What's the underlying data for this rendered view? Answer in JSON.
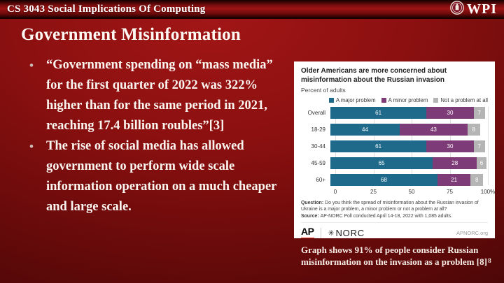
{
  "header": {
    "course": "CS 3043 Social Implications Of Computing",
    "logo_text": "WPI"
  },
  "slide": {
    "title": "Government Misinformation",
    "bullets": [
      "“Government spending on “mass media” for the first quarter of 2022 was 322% higher than for the same period in 2021, reaching 17.4 billion roubles”[3]",
      "The rise of social media has allowed government to perform wide scale information operation on a much cheaper and large scale."
    ],
    "caption": "Graph shows 91% of people consider Russian misinformation on the invasion as a problem [8]",
    "page_number": "8"
  },
  "chart": {
    "title": "Older Americans are more concerned about misinformation about the Russian invasion",
    "subtitle": "Percent of adults",
    "question_label": "Question:",
    "question": "Do you think the spread of misinformation about the Russian invasion of Ukraine is a major problem, a minor problem or not a problem at all?",
    "source_label": "Source:",
    "source": "AP-NORC Poll conducted April 14-18, 2022 with 1,085 adults.",
    "footer": {
      "ap": "AP",
      "norc_star": "✳",
      "norc": "NORC",
      "site": "APNORC.org"
    },
    "colors": {
      "major": "#1f6a8b",
      "minor": "#7d3c77",
      "none": "#b5b5b5",
      "ap_red": "#ee3524"
    }
  },
  "chart_data": {
    "type": "bar",
    "orientation": "horizontal",
    "stacked": true,
    "title": "Older Americans are more concerned about misinformation about the Russian invasion",
    "subtitle": "Percent of adults",
    "categories": [
      "Overall",
      "18-29",
      "30-44",
      "45-59",
      "60+"
    ],
    "series": [
      {
        "name": "A major problem",
        "color": "#1f6a8b",
        "values": [
          61,
          44,
          61,
          65,
          68
        ]
      },
      {
        "name": "A minor problem",
        "color": "#7d3c77",
        "values": [
          30,
          43,
          30,
          28,
          21
        ]
      },
      {
        "name": "Not a problem at all",
        "color": "#b5b5b5",
        "values": [
          7,
          8,
          7,
          6,
          8
        ]
      }
    ],
    "xticks": [
      "0",
      "25",
      "50",
      "75",
      "100%"
    ],
    "xlim": [
      0,
      100
    ],
    "grid": true,
    "legend_position": "top-right"
  }
}
